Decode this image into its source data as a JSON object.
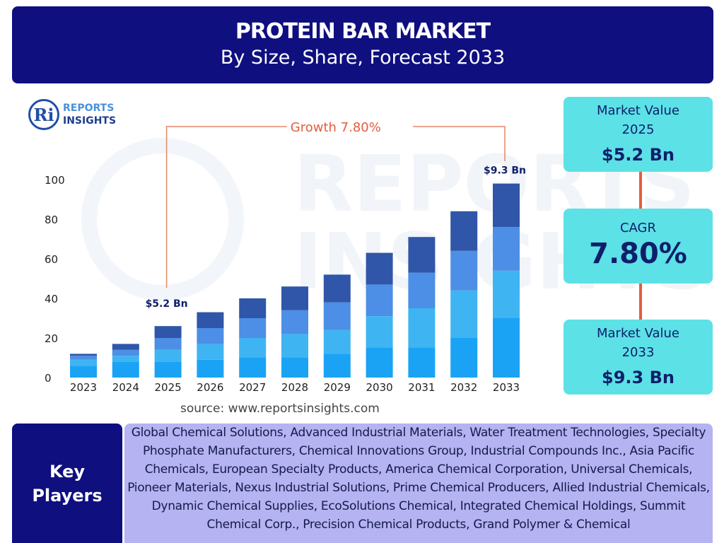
{
  "header": {
    "title": "PROTEIN BAR MARKET",
    "subtitle": "By Size, Share, Forecast 2033"
  },
  "logo": {
    "line1": "REPORTS",
    "line2": "INSIGHTS",
    "mark": "Ri"
  },
  "chart_data": {
    "type": "bar",
    "stacked": true,
    "categories": [
      "2023",
      "2024",
      "2025",
      "2026",
      "2027",
      "2028",
      "2029",
      "2030",
      "2031",
      "2032",
      "2033"
    ],
    "series": [
      {
        "values": [
          6,
          8,
          8,
          9,
          10,
          10,
          12,
          15,
          15,
          20,
          30
        ],
        "color": "#1aa3f5"
      },
      {
        "values": [
          3,
          3,
          6,
          8,
          10,
          12,
          12,
          16,
          20,
          24,
          24
        ],
        "color": "#3fb4f2"
      },
      {
        "values": [
          2,
          3,
          6,
          8,
          10,
          12,
          14,
          16,
          18,
          20,
          22
        ],
        "color": "#4d8ee6"
      },
      {
        "values": [
          1,
          3,
          6,
          8,
          10,
          12,
          14,
          16,
          18,
          20,
          22
        ],
        "color": "#2f56a8"
      }
    ],
    "yticks": [
      0,
      20,
      40,
      60,
      80,
      100
    ],
    "ylim": [
      0,
      100
    ],
    "annotations": {
      "start_label": "$5.2 Bn",
      "end_label": "$9.3 Bn",
      "growth_label": "Growth  7.80%"
    }
  },
  "side": {
    "mv2025_label": "Market Value 2025",
    "mv2025_value": "$5.2 Bn",
    "cagr_label": "CAGR",
    "cagr_value": "7.80%",
    "mv2033_label": "Market Value 2033",
    "mv2033_value": "$9.3 Bn"
  },
  "source": "source: www.reportsinsights.com",
  "key_players": {
    "label": "Key Players",
    "text": "Global Chemical Solutions, Advanced Industrial Materials, Water Treatment Technologies, Specialty Phosphate Manufacturers, Chemical Innovations Group, Industrial Compounds Inc., Asia Pacific Chemicals, European Specialty Products, America Chemical Corporation, Universal Chemicals, Pioneer Materials, Nexus Industrial Solutions, Prime Chemical Producers, Allied Industrial Chemicals, Dynamic Chemical Supplies, EcoSolutions Chemical, Integrated Chemical Holdings, Summit Chemical Corp., Precision Chemical Products, Grand Polymer & Chemical"
  },
  "colors": {
    "navy": "#0f0f80",
    "cyan": "#5ce1e6",
    "accent": "#e25e3e",
    "lavender": "#b5b3f2"
  }
}
